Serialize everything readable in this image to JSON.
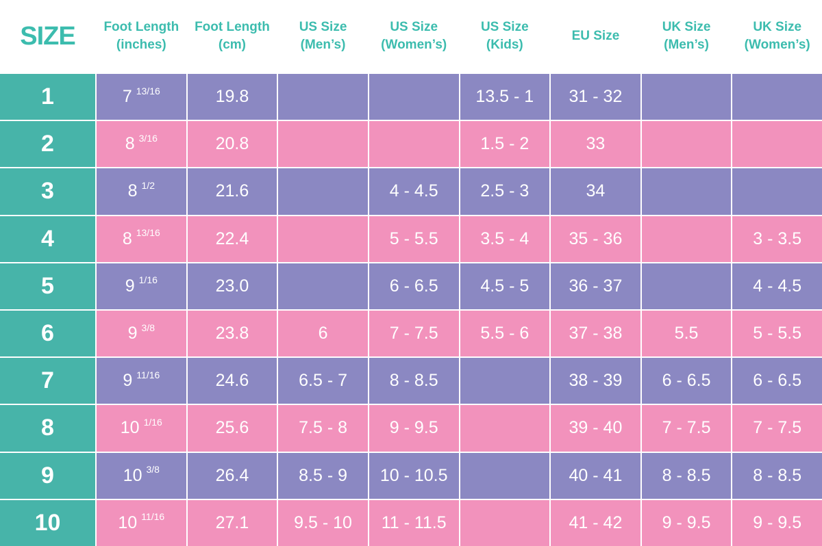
{
  "header": {
    "columns": [
      [
        "SIZE"
      ],
      [
        "Foot Length",
        "(inches)"
      ],
      [
        "Foot Length",
        "(cm)"
      ],
      [
        "US Size",
        "(Men’s)"
      ],
      [
        "US Size",
        "(Women’s)"
      ],
      [
        "US Size",
        "(Kids)"
      ],
      [
        "EU Size"
      ],
      [
        "UK Size",
        "(Men’s)"
      ],
      [
        "UK Size",
        "(Women’s)"
      ]
    ]
  },
  "table": {
    "rows": [
      {
        "size": "1",
        "foot_in": {
          "whole": "7",
          "fraction": "13/16"
        },
        "cells": [
          "19.8",
          null,
          null,
          "13.5 - 1",
          "31 - 32",
          null,
          null
        ]
      },
      {
        "size": "2",
        "foot_in": {
          "whole": "8",
          "fraction": "3/16"
        },
        "cells": [
          "20.8",
          null,
          null,
          "1.5 - 2",
          "33",
          null,
          null
        ]
      },
      {
        "size": "3",
        "foot_in": {
          "whole": "8",
          "fraction": "1/2"
        },
        "cells": [
          "21.6",
          null,
          "4 - 4.5",
          "2.5 - 3",
          "34",
          null,
          null
        ]
      },
      {
        "size": "4",
        "foot_in": {
          "whole": "8",
          "fraction": "13/16"
        },
        "cells": [
          "22.4",
          null,
          "5 - 5.5",
          "3.5 - 4",
          "35 - 36",
          null,
          "3 - 3.5"
        ]
      },
      {
        "size": "5",
        "foot_in": {
          "whole": "9",
          "fraction": "1/16"
        },
        "cells": [
          "23.0",
          null,
          "6 - 6.5",
          "4.5 - 5",
          "36 - 37",
          null,
          "4 - 4.5"
        ]
      },
      {
        "size": "6",
        "foot_in": {
          "whole": "9",
          "fraction": "3/8"
        },
        "cells": [
          "23.8",
          "6",
          "7 - 7.5",
          "5.5 - 6",
          "37 - 38",
          "5.5",
          "5 - 5.5"
        ]
      },
      {
        "size": "7",
        "foot_in": {
          "whole": "9",
          "fraction": "11/16"
        },
        "cells": [
          "24.6",
          "6.5 - 7",
          "8 - 8.5",
          null,
          "38 - 39",
          "6 - 6.5",
          "6 - 6.5"
        ]
      },
      {
        "size": "8",
        "foot_in": {
          "whole": "10",
          "fraction": "1/16"
        },
        "cells": [
          "25.6",
          "7.5 - 8",
          "9 - 9.5",
          null,
          "39 - 40",
          "7 - 7.5",
          "7 - 7.5"
        ]
      },
      {
        "size": "9",
        "foot_in": {
          "whole": "10",
          "fraction": "3/8"
        },
        "cells": [
          "26.4",
          "8.5 - 9",
          "10 - 10.5",
          null,
          "40 - 41",
          "8 - 8.5",
          "8 - 8.5"
        ]
      },
      {
        "size": "10",
        "foot_in": {
          "whole": "10",
          "fraction": "11/16"
        },
        "cells": [
          "27.1",
          "9.5 - 10",
          "11 - 11.5",
          null,
          "41 - 42",
          "9 - 9.5",
          "9 - 9.5"
        ]
      }
    ]
  }
}
